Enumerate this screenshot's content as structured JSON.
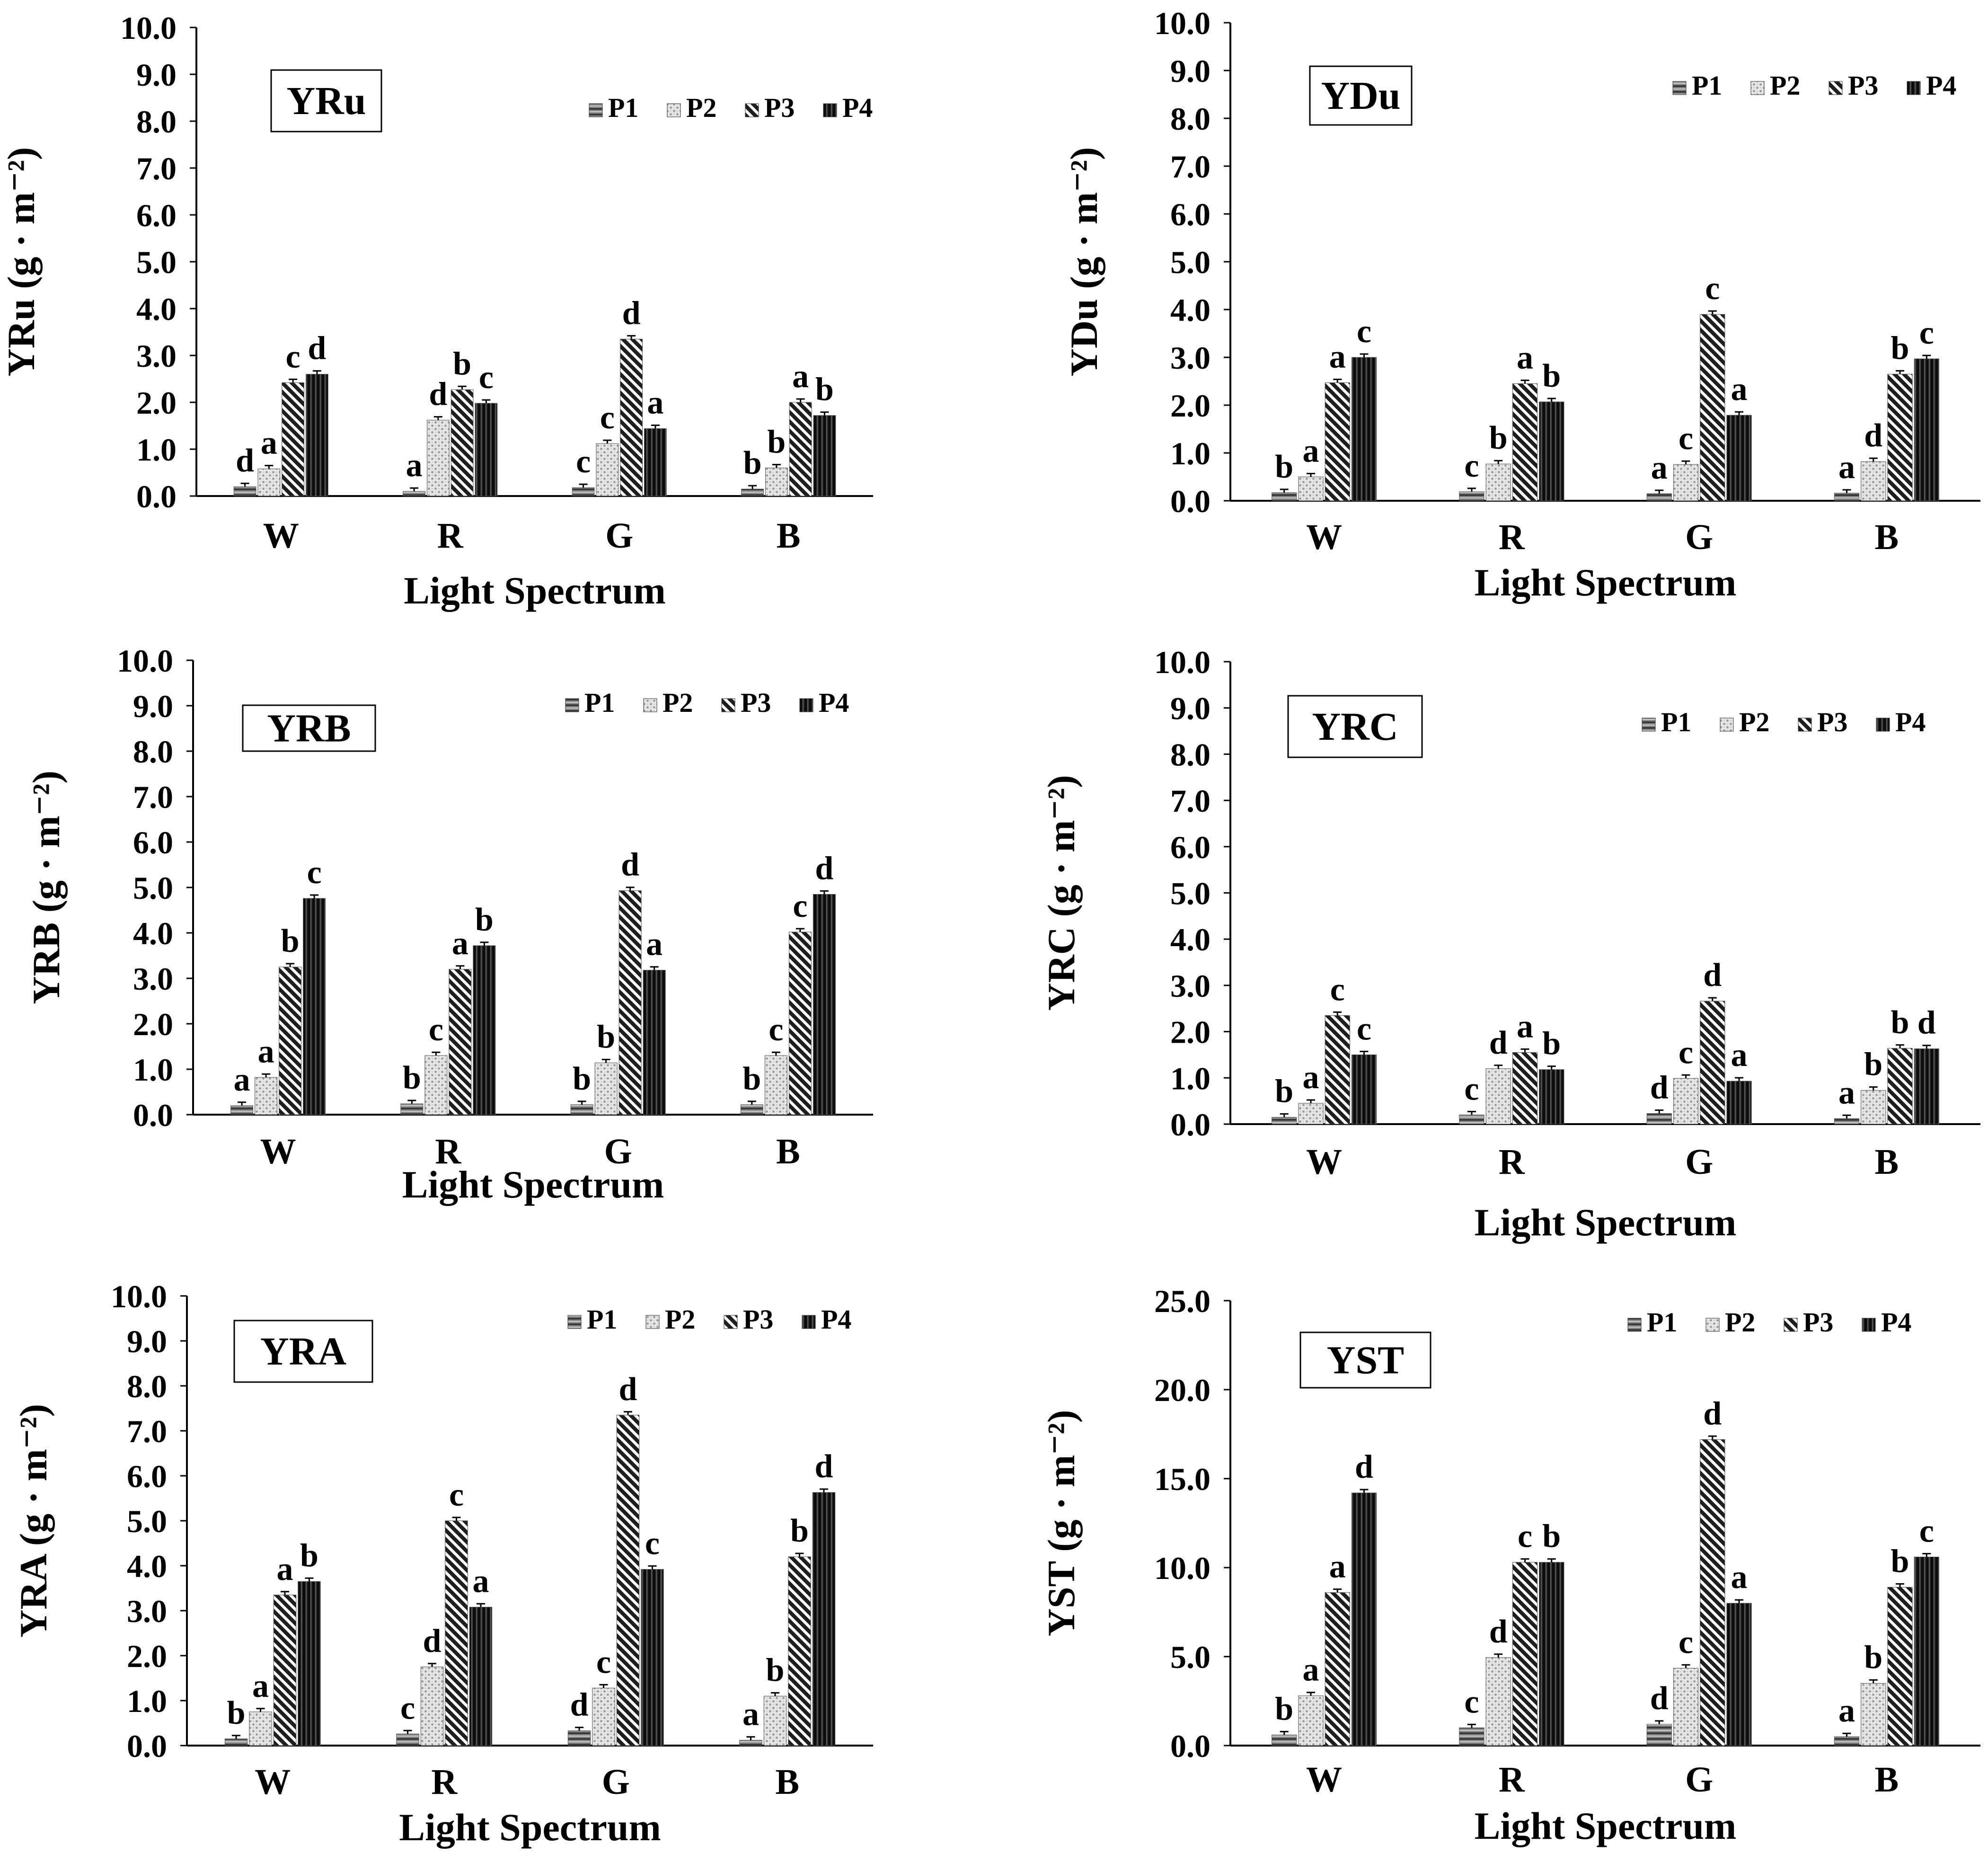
{
  "figure": {
    "legend_items": [
      "P1",
      "P2",
      "P3",
      "P4"
    ],
    "series_colors": {
      "P1": "#555555",
      "P2": "#bdbdbd",
      "P3": "#222222",
      "P4": "#111111"
    },
    "series_patterns": {
      "P1": "horizontal-lines",
      "P2": "dotted-crosshatch",
      "P3": "diagonal-stripes",
      "P4": "vertical-stripes"
    }
  },
  "chart_data": [
    {
      "type": "bar",
      "panel_label": "YRu",
      "categories": [
        "W",
        "R",
        "G",
        "B"
      ],
      "xlabel": "Light Spectrum",
      "ylabel": "YRu (g · m⁻²)",
      "ylim": [
        0,
        10
      ],
      "ytick_step": 1,
      "tick_decimals": 1,
      "grid": false,
      "legend": "top-right",
      "series": [
        {
          "name": "P1",
          "values": [
            0.2,
            0.1,
            0.18,
            0.15
          ],
          "letters": [
            "d",
            "a",
            "c",
            "b"
          ]
        },
        {
          "name": "P2",
          "values": [
            0.58,
            1.62,
            1.12,
            0.6
          ],
          "letters": [
            "a",
            "d",
            "c",
            "b"
          ]
        },
        {
          "name": "P3",
          "values": [
            2.42,
            2.27,
            3.35,
            2.0
          ],
          "letters": [
            "c",
            "b",
            "d",
            "a"
          ]
        },
        {
          "name": "P4",
          "values": [
            2.6,
            1.98,
            1.44,
            1.72
          ],
          "letters": [
            "d",
            "c",
            "a",
            "b"
          ]
        }
      ]
    },
    {
      "type": "bar",
      "panel_label": "YDu",
      "categories": [
        "W",
        "R",
        "G",
        "B"
      ],
      "xlabel": "Light Spectrum",
      "ylabel": "YDu (g · m⁻²)",
      "ylim": [
        0,
        10
      ],
      "ytick_step": 1,
      "tick_decimals": 1,
      "grid": false,
      "legend": "top-right",
      "series": [
        {
          "name": "P1",
          "values": [
            0.17,
            0.19,
            0.15,
            0.16
          ],
          "letters": [
            "b",
            "c",
            "a",
            "a"
          ]
        },
        {
          "name": "P2",
          "values": [
            0.5,
            0.77,
            0.76,
            0.82
          ],
          "letters": [
            "a",
            "b",
            "c",
            "d"
          ]
        },
        {
          "name": "P3",
          "values": [
            2.47,
            2.45,
            3.9,
            2.65
          ],
          "letters": [
            "a",
            "a",
            "c",
            "b"
          ]
        },
        {
          "name": "P4",
          "values": [
            3.0,
            2.07,
            1.79,
            2.97
          ],
          "letters": [
            "c",
            "b",
            "a",
            "c"
          ]
        }
      ]
    },
    {
      "type": "bar",
      "panel_label": "YRB",
      "categories": [
        "W",
        "R",
        "G",
        "B"
      ],
      "xlabel": "Light Spectrum",
      "ylabel": "YRB (g · m⁻²)",
      "ylim": [
        0,
        10
      ],
      "ytick_step": 1,
      "tick_decimals": 1,
      "grid": false,
      "legend": "top-right",
      "series": [
        {
          "name": "P1",
          "values": [
            0.2,
            0.24,
            0.22,
            0.22
          ],
          "letters": [
            "a",
            "b",
            "b",
            "b"
          ]
        },
        {
          "name": "P2",
          "values": [
            0.82,
            1.3,
            1.14,
            1.3
          ],
          "letters": [
            "a",
            "c",
            "b",
            "c"
          ]
        },
        {
          "name": "P3",
          "values": [
            3.25,
            3.2,
            4.93,
            4.02
          ],
          "letters": [
            "b",
            "a",
            "d",
            "c"
          ]
        },
        {
          "name": "P4",
          "values": [
            4.76,
            3.72,
            3.18,
            4.85
          ],
          "letters": [
            "c",
            "b",
            "a",
            "d"
          ]
        }
      ]
    },
    {
      "type": "bar",
      "panel_label": "YRC",
      "categories": [
        "W",
        "R",
        "G",
        "B"
      ],
      "xlabel": "Light Spectrum",
      "ylabel": "YRC (g · m⁻²)",
      "ylim": [
        0,
        10
      ],
      "ytick_step": 1,
      "tick_decimals": 1,
      "grid": false,
      "legend": "top-right",
      "series": [
        {
          "name": "P1",
          "values": [
            0.15,
            0.2,
            0.23,
            0.12
          ],
          "letters": [
            "b",
            "c",
            "d",
            "a"
          ]
        },
        {
          "name": "P2",
          "values": [
            0.45,
            1.2,
            0.99,
            0.73
          ],
          "letters": [
            "a",
            "d",
            "c",
            "b"
          ]
        },
        {
          "name": "P3",
          "values": [
            2.35,
            1.55,
            2.66,
            1.64
          ],
          "letters": [
            "c",
            "a",
            "d",
            "b"
          ]
        },
        {
          "name": "P4",
          "values": [
            1.5,
            1.18,
            0.93,
            1.63
          ],
          "letters": [
            "c",
            "b",
            "a",
            "d"
          ]
        }
      ]
    },
    {
      "type": "bar",
      "panel_label": "YRA",
      "categories": [
        "W",
        "R",
        "G",
        "B"
      ],
      "xlabel": "Light Spectrum",
      "ylabel": "YRA (g · m⁻²)",
      "ylim": [
        0,
        10
      ],
      "ytick_step": 1,
      "tick_decimals": 1,
      "grid": false,
      "legend": "top-right",
      "series": [
        {
          "name": "P1",
          "values": [
            0.15,
            0.26,
            0.33,
            0.12
          ],
          "letters": [
            "b",
            "c",
            "d",
            "a"
          ]
        },
        {
          "name": "P2",
          "values": [
            0.75,
            1.75,
            1.28,
            1.1
          ],
          "letters": [
            "a",
            "d",
            "c",
            "b"
          ]
        },
        {
          "name": "P3",
          "values": [
            3.35,
            5.0,
            7.35,
            4.2
          ],
          "letters": [
            "a",
            "c",
            "d",
            "b"
          ]
        },
        {
          "name": "P4",
          "values": [
            3.65,
            3.08,
            3.92,
            5.63
          ],
          "letters": [
            "b",
            "a",
            "c",
            "d"
          ]
        }
      ]
    },
    {
      "type": "bar",
      "panel_label": "YST",
      "categories": [
        "W",
        "R",
        "G",
        "B"
      ],
      "xlabel": "Light Spectrum",
      "ylabel": "YST (g · m⁻²)",
      "ylim": [
        0,
        25
      ],
      "ytick_step": 5,
      "tick_decimals": 1,
      "grid": false,
      "legend": "top-right",
      "series": [
        {
          "name": "P1",
          "values": [
            0.6,
            1.0,
            1.2,
            0.5
          ],
          "letters": [
            "b",
            "c",
            "d",
            "a"
          ]
        },
        {
          "name": "P2",
          "values": [
            2.8,
            4.95,
            4.35,
            3.5
          ],
          "letters": [
            "a",
            "d",
            "c",
            "b"
          ]
        },
        {
          "name": "P3",
          "values": [
            8.6,
            10.3,
            17.2,
            8.9
          ],
          "letters": [
            "a",
            "c",
            "d",
            "b"
          ]
        },
        {
          "name": "P4",
          "values": [
            14.2,
            10.3,
            8.0,
            10.6
          ],
          "letters": [
            "d",
            "b",
            "a",
            "c"
          ]
        }
      ]
    }
  ]
}
